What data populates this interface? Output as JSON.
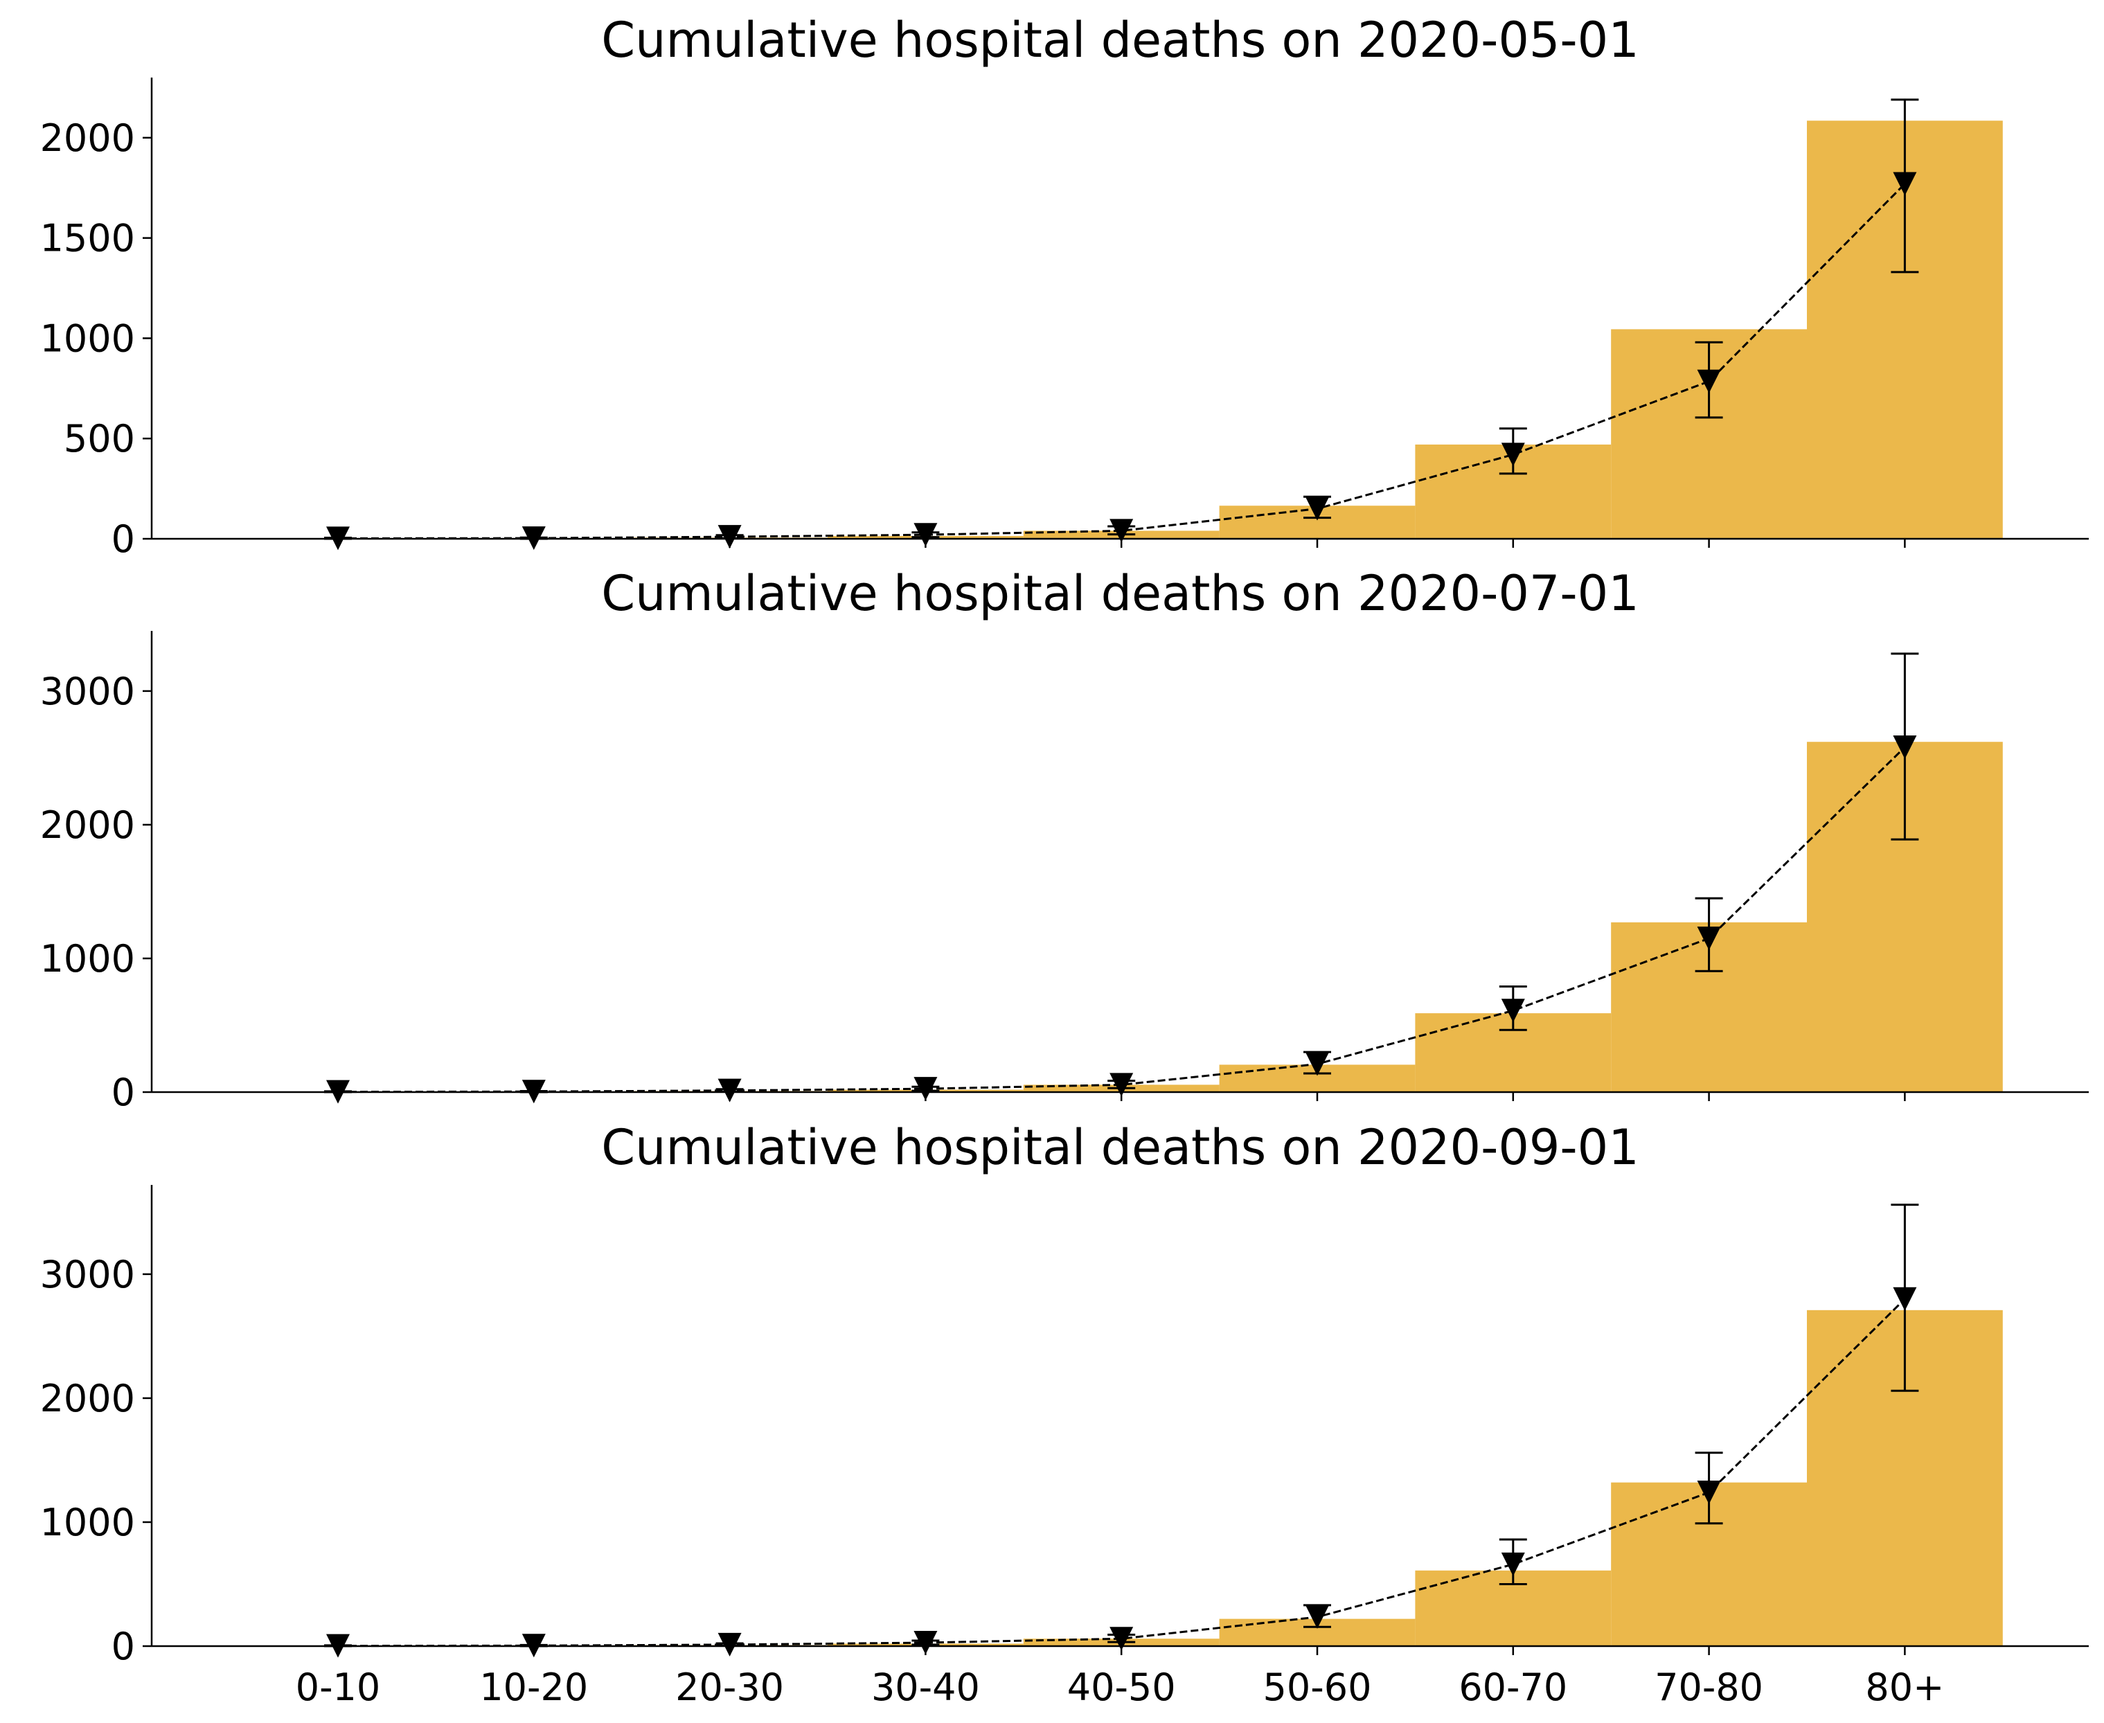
{
  "chart_data": [
    {
      "type": "bar",
      "title": "Cumulative hospital deaths on 2020-05-01",
      "xlabel": "",
      "ylabel": "",
      "categories": [
        "0-10",
        "10-20",
        "20-30",
        "30-40",
        "40-50",
        "50-60",
        "60-70",
        "70-80",
        "80+"
      ],
      "values": [
        0,
        2,
        6,
        14,
        40,
        165,
        470,
        1045,
        2085
      ],
      "points": [
        {
          "value": 2,
          "low": 0,
          "high": 5
        },
        {
          "value": 3,
          "low": 0,
          "high": 6
        },
        {
          "value": 10,
          "low": 3,
          "high": 18
        },
        {
          "value": 20,
          "low": 8,
          "high": 32
        },
        {
          "value": 40,
          "low": 22,
          "high": 62
        },
        {
          "value": 150,
          "low": 105,
          "high": 210
        },
        {
          "value": 420,
          "low": 325,
          "high": 550
        },
        {
          "value": 785,
          "low": 605,
          "high": 980
        },
        {
          "value": 1770,
          "low": 1330,
          "high": 2190
        }
      ],
      "ylim": [
        0,
        2300
      ],
      "yticks": [
        0,
        500,
        1000,
        1500,
        2000
      ],
      "grid": false
    },
    {
      "type": "bar",
      "title": "Cumulative hospital deaths on 2020-07-01",
      "xlabel": "",
      "ylabel": "",
      "categories": [
        "0-10",
        "10-20",
        "20-30",
        "30-40",
        "40-50",
        "50-60",
        "60-70",
        "70-80",
        "80+"
      ],
      "values": [
        0,
        3,
        8,
        18,
        55,
        205,
        590,
        1270,
        2620
      ],
      "points": [
        {
          "value": 2,
          "low": 0,
          "high": 6
        },
        {
          "value": 4,
          "low": 0,
          "high": 8
        },
        {
          "value": 12,
          "low": 4,
          "high": 22
        },
        {
          "value": 25,
          "low": 10,
          "high": 40
        },
        {
          "value": 55,
          "low": 30,
          "high": 85
        },
        {
          "value": 210,
          "low": 140,
          "high": 300
        },
        {
          "value": 610,
          "low": 465,
          "high": 790
        },
        {
          "value": 1150,
          "low": 905,
          "high": 1450
        },
        {
          "value": 2580,
          "low": 1890,
          "high": 3280
        }
      ],
      "ylim": [
        0,
        3450
      ],
      "yticks": [
        0,
        1000,
        2000,
        3000
      ],
      "grid": false
    },
    {
      "type": "bar",
      "title": "Cumulative hospital deaths on 2020-09-01",
      "xlabel": "",
      "ylabel": "",
      "categories": [
        "0-10",
        "10-20",
        "20-30",
        "30-40",
        "40-50",
        "50-60",
        "60-70",
        "70-80",
        "80+"
      ],
      "values": [
        0,
        3,
        8,
        20,
        60,
        220,
        610,
        1320,
        2710
      ],
      "points": [
        {
          "value": 2,
          "low": 0,
          "high": 6
        },
        {
          "value": 4,
          "low": 0,
          "high": 9
        },
        {
          "value": 12,
          "low": 4,
          "high": 22
        },
        {
          "value": 28,
          "low": 12,
          "high": 45
        },
        {
          "value": 60,
          "low": 33,
          "high": 92
        },
        {
          "value": 235,
          "low": 155,
          "high": 330
        },
        {
          "value": 660,
          "low": 500,
          "high": 860
        },
        {
          "value": 1240,
          "low": 990,
          "high": 1560
        },
        {
          "value": 2800,
          "low": 2060,
          "high": 3560
        }
      ],
      "ylim": [
        0,
        3720
      ],
      "yticks": [
        0,
        1000,
        2000,
        3000
      ],
      "grid": false
    }
  ],
  "colors": {
    "bar": "#ebb84b",
    "marker": "#000000",
    "axis": "#000000",
    "background": "#ffffff"
  },
  "marker_shape": "triangle-down",
  "line_style": "dashed"
}
